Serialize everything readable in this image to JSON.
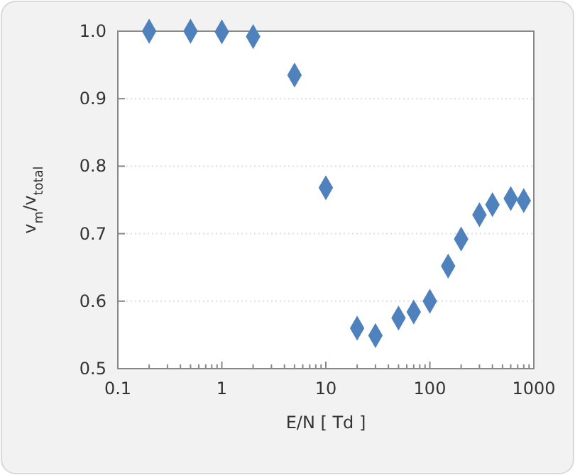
{
  "chart_data": {
    "type": "scatter",
    "xlabel": "E/N [ Td ]",
    "ylabel": "v$_{m}$/v$_{total}$",
    "log": "x",
    "grid": "y",
    "marker": "diamond",
    "xlim": [
      0.1,
      1000
    ],
    "xticks": [
      0.1,
      1,
      10,
      100,
      1000
    ],
    "ylim": [
      0.5,
      1.0
    ],
    "yticks": [
      {
        "value": 0.5,
        "label": "0.5"
      },
      {
        "value": 0.6,
        "label": "0.6"
      },
      {
        "value": 0.7,
        "label": "0.7"
      },
      {
        "value": 0.8,
        "label": "0.8"
      },
      {
        "value": 0.9,
        "label": "0.9"
      },
      {
        "value": 1.0,
        "label": "1.0"
      }
    ],
    "series": [
      {
        "color": "#4f81bd",
        "x": [
          0.2,
          0.5,
          1,
          2,
          5,
          10,
          20,
          30,
          50,
          70,
          100,
          150,
          200,
          300,
          400,
          600,
          800
        ],
        "values": [
          1.0,
          1.0,
          0.999,
          0.992,
          0.935,
          0.768,
          0.56,
          0.549,
          0.575,
          0.584,
          0.6,
          0.652,
          0.692,
          0.728,
          0.743,
          0.752,
          0.749
        ]
      }
    ]
  }
}
